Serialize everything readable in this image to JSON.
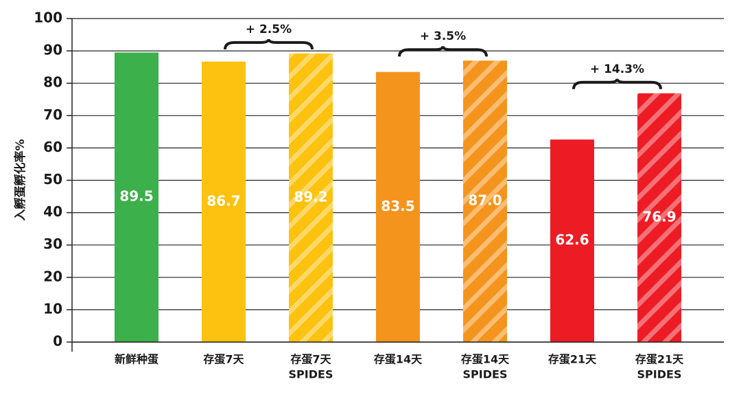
{
  "chart_data": {
    "type": "bar",
    "y_label": "入孵蛋孵化率%",
    "categories": [
      [
        "新鲜种蛋"
      ],
      [
        "存蛋7天"
      ],
      [
        "存蛋7天",
        "SPIDES"
      ],
      [
        "存蛋14天"
      ],
      [
        "存蛋14天",
        "SPIDES"
      ],
      [
        "存蛋21天"
      ],
      [
        "存蛋21天",
        "SPIDES"
      ]
    ],
    "values": [
      89.5,
      86.7,
      89.2,
      83.5,
      87.0,
      62.6,
      76.9
    ],
    "value_labels": [
      "89.5",
      "86.7",
      "89.2",
      "83.5",
      "87.0",
      "62.6",
      "76.9"
    ],
    "colors": [
      "#3cb04a",
      "#fdc20f",
      "#fdc20f",
      "#f5941d",
      "#f5941d",
      "#ed1c24",
      "#ed1c24"
    ],
    "hatched": [
      false,
      false,
      true,
      false,
      true,
      false,
      true
    ],
    "annotations": [
      {
        "text": "+ 2.5%",
        "pair": [
          1,
          2
        ]
      },
      {
        "text": "+ 3.5%",
        "pair": [
          3,
          4
        ]
      },
      {
        "text": "+ 14.3%",
        "pair": [
          5,
          6
        ]
      }
    ],
    "ylim": [
      0,
      100
    ],
    "yticks": [
      0,
      10,
      20,
      30,
      40,
      50,
      60,
      70,
      80,
      90,
      100
    ],
    "grid": true
  }
}
